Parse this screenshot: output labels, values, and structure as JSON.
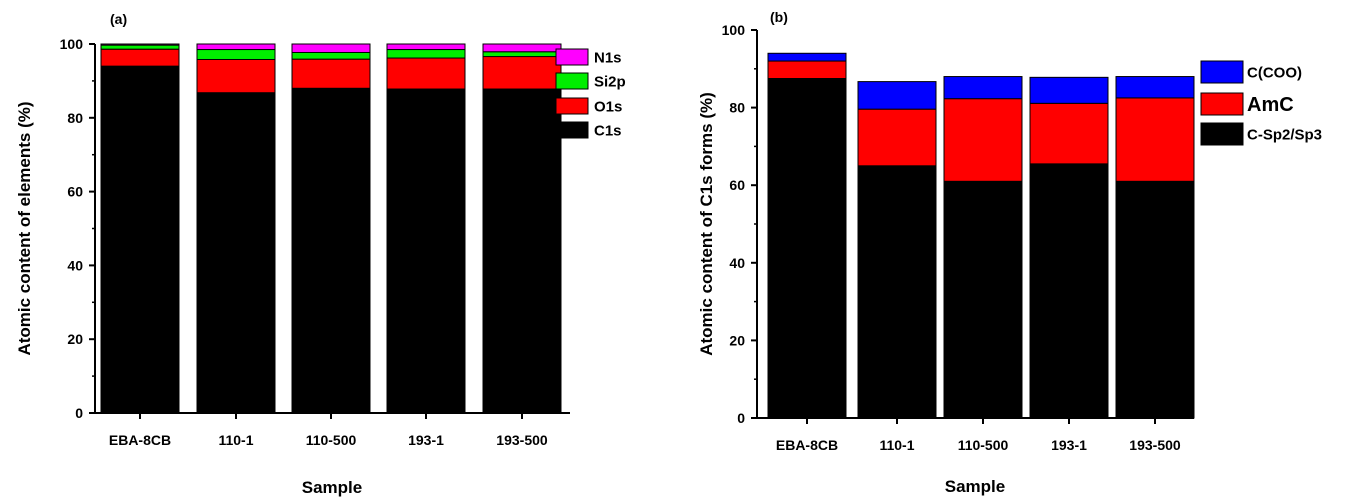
{
  "chart_data": [
    {
      "panel_label": "(a)",
      "type": "bar",
      "stacked": true,
      "categories": [
        "EBA-8CB",
        "110-1",
        "110-500",
        "193-1",
        "193-500"
      ],
      "xlabel": "Sample",
      "ylabel": "Atomic content of elements (%)",
      "ylim": [
        0,
        100
      ],
      "yticks": [
        0,
        20,
        40,
        60,
        80,
        100
      ],
      "legend_position": "right",
      "series": [
        {
          "name": "C1s",
          "color": "#000000",
          "values": [
            94.0,
            86.8,
            88.0,
            87.8,
            87.8
          ]
        },
        {
          "name": "O1s",
          "color": "#ff0000",
          "values": [
            4.6,
            9.0,
            7.9,
            8.4,
            8.8
          ]
        },
        {
          "name": "Si2p",
          "color": "#00ee00",
          "values": [
            1.1,
            2.7,
            1.8,
            2.3,
            1.3
          ]
        },
        {
          "name": "N1s",
          "color": "#ff00ff",
          "values": [
            0.3,
            1.5,
            2.3,
            1.5,
            2.1
          ]
        }
      ],
      "legend_order": [
        "N1s",
        "Si2p",
        "O1s",
        "C1s"
      ]
    },
    {
      "panel_label": "(b)",
      "type": "bar",
      "stacked": true,
      "categories": [
        "EBA-8CB",
        "110-1",
        "110-500",
        "193-1",
        "193-500"
      ],
      "xlabel": "Sample",
      "ylabel": "Atomic content of C1s forms (%)",
      "ylim": [
        0,
        100
      ],
      "yticks": [
        0,
        20,
        40,
        60,
        80,
        100
      ],
      "legend_position": "right",
      "series": [
        {
          "name": "C-Sp2/Sp3",
          "color": "#000000",
          "values": [
            87.5,
            65.0,
            61.0,
            65.5,
            61.0
          ]
        },
        {
          "name": "AmC",
          "color": "#ff0000",
          "values": [
            4.5,
            14.6,
            21.3,
            15.6,
            21.5
          ]
        },
        {
          "name": "C(COO)",
          "color": "#0000ff",
          "values": [
            2.0,
            7.1,
            5.7,
            6.7,
            5.5
          ]
        }
      ],
      "legend_order": [
        "C(COO)",
        "AmC",
        "C-Sp2/Sp3"
      ]
    }
  ]
}
